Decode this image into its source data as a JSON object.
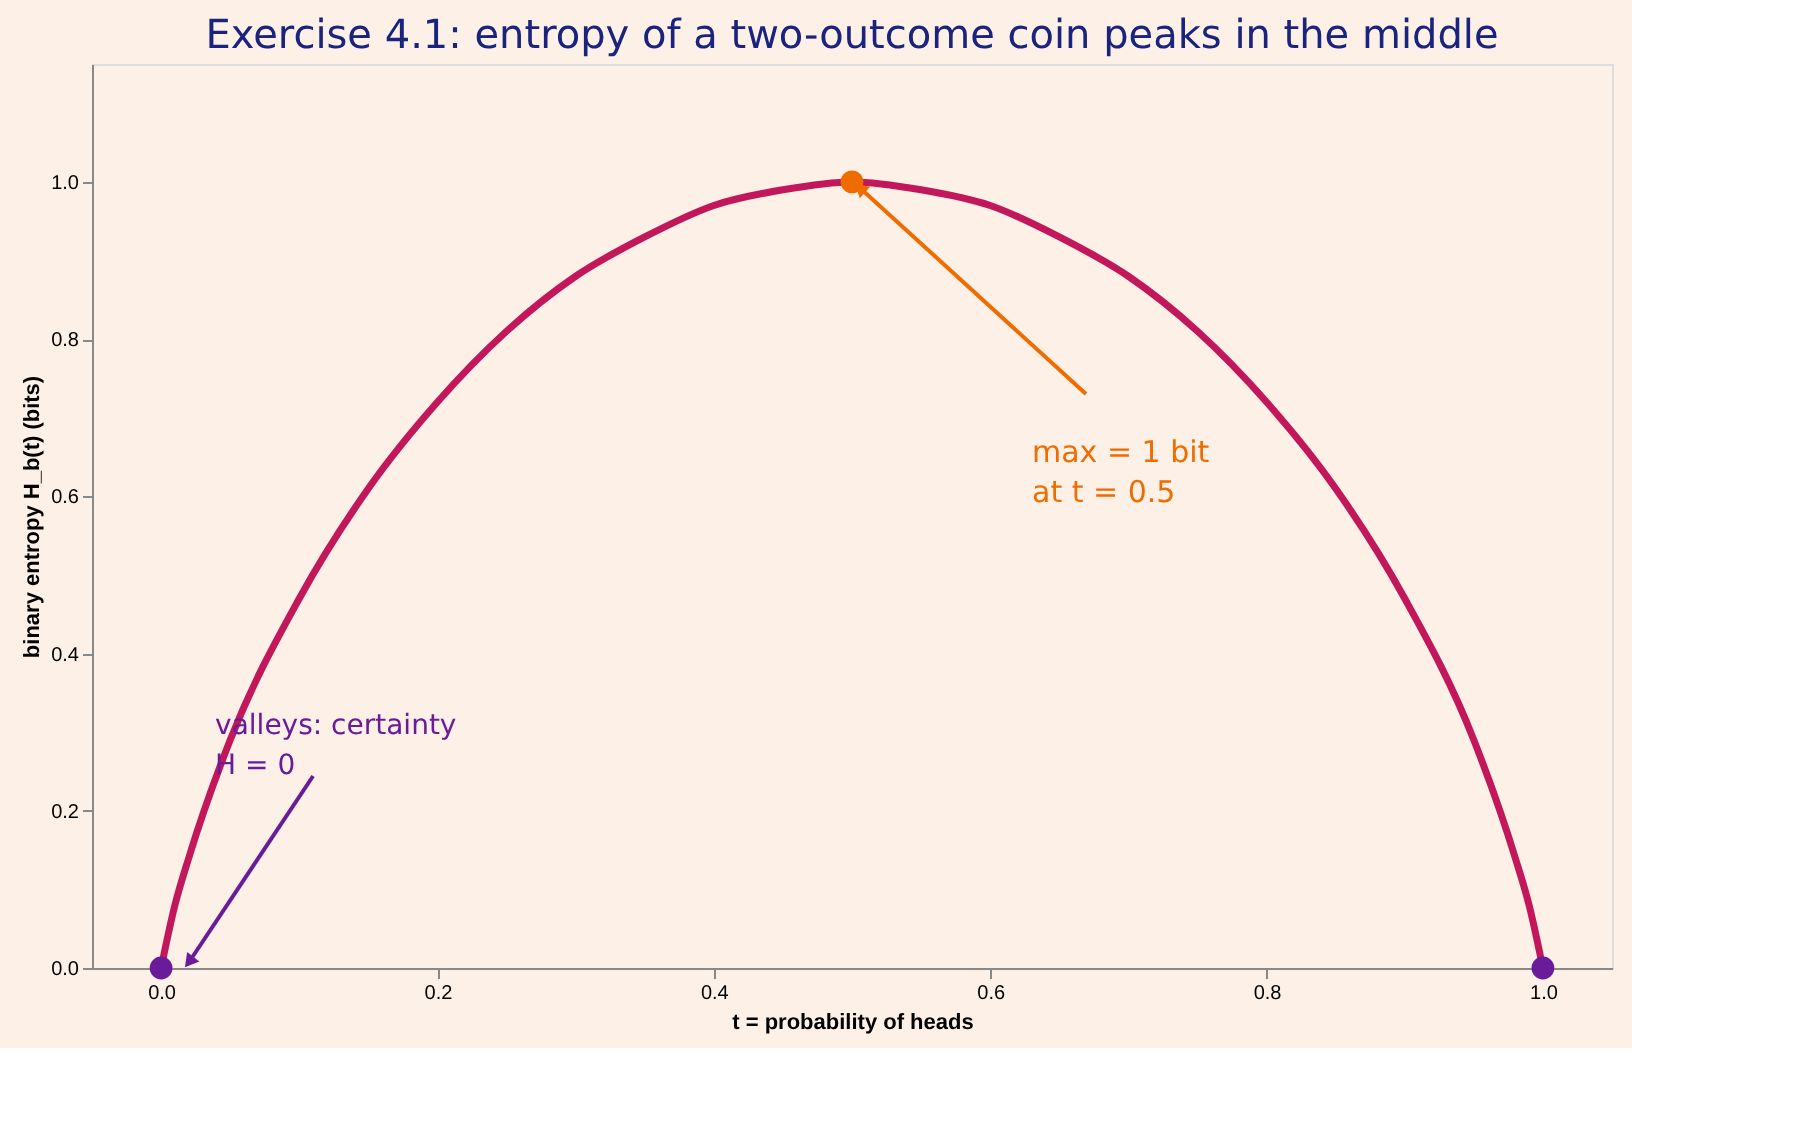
{
  "chart_data": {
    "type": "line",
    "title": "Exercise 4.1: entropy of a two-outcome coin peaks in the middle",
    "xlabel": "t = probability of heads",
    "ylabel": "binary entropy H_b(t)  (bits)",
    "xlim": [
      -0.05,
      1.05
    ],
    "xticks": [
      {
        "value": 0,
        "label": "0.0"
      },
      {
        "value": 0.2,
        "label": "0.2"
      },
      {
        "value": 0.4,
        "label": "0.4"
      },
      {
        "value": 0.6,
        "label": "0.6"
      },
      {
        "value": 0.8,
        "label": "0.8"
      },
      {
        "value": 1,
        "label": "1.0"
      }
    ],
    "ylim": [
      0,
      1.15
    ],
    "yticks": [
      {
        "value": 0,
        "label": "0.0"
      },
      {
        "value": 0.2,
        "label": "0.2"
      },
      {
        "value": 0.4,
        "label": "0.4"
      },
      {
        "value": 0.6,
        "label": "0.6"
      },
      {
        "value": 0.8,
        "label": "0.8"
      },
      {
        "value": 1,
        "label": "1.0"
      }
    ],
    "grid": false,
    "line_style": "solid",
    "series": [
      {
        "color": "#c2185b",
        "marker": "none",
        "x": [
          0,
          0.01,
          0.02,
          0.05,
          0.1,
          0.15,
          0.2,
          0.25,
          0.3,
          0.35,
          0.4,
          0.45,
          0.5,
          0.55,
          0.6,
          0.65,
          0.7,
          0.75,
          0.8,
          0.85,
          0.9,
          0.95,
          0.98,
          0.99,
          1
        ],
        "values": [
          0,
          0.08,
          0.14,
          0.29,
          0.47,
          0.61,
          0.72,
          0.81,
          0.88,
          0.93,
          0.97,
          0.99,
          1,
          0.99,
          0.97,
          0.93,
          0.88,
          0.81,
          0.72,
          0.61,
          0.47,
          0.29,
          0.14,
          0.08,
          0
        ]
      },
      {
        "type": "scatter",
        "color": "#ef6c00",
        "marker": "circle",
        "x": [
          0.5
        ],
        "values": [
          1
        ]
      },
      {
        "type": "scatter",
        "color": "#6a1b9a",
        "marker": "circle",
        "x": [
          0,
          1
        ],
        "values": [
          0,
          0
        ]
      }
    ],
    "annotations": [
      "max = 1 bit\nat t = 0.5",
      "valleys: certainty\nH = 0"
    ]
  }
}
